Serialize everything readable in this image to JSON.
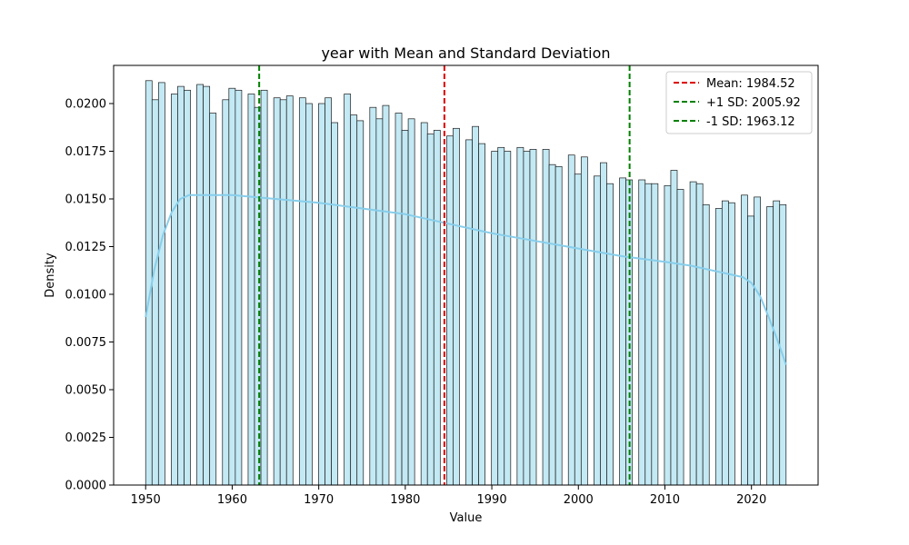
{
  "chart_data": {
    "type": "histogram",
    "title": "year with Mean and Standard Deviation",
    "xlabel": "Value",
    "ylabel": "Density",
    "xlim": [
      1946.3,
      2027.7
    ],
    "ylim": [
      0,
      0.022
    ],
    "x_ticks": [
      1950,
      1960,
      1970,
      1980,
      1990,
      2000,
      2010,
      2020
    ],
    "x_tick_labels": [
      "1950",
      "1960",
      "1970",
      "1980",
      "1990",
      "2000",
      "2010",
      "2020"
    ],
    "y_ticks": [
      0,
      0.0025,
      0.005,
      0.0075,
      0.01,
      0.0125,
      0.015,
      0.0175,
      0.02
    ],
    "y_tick_labels": [
      "0.0000",
      "0.0025",
      "0.0050",
      "0.0075",
      "0.0100",
      "0.0125",
      "0.0150",
      "0.0175",
      "0.0200"
    ],
    "bars": {
      "series_name": "",
      "bin_width": 0.74,
      "bin_starts": [
        1950.0,
        1950.74,
        1951.48,
        1952.22,
        1952.96,
        1953.7,
        1954.44,
        1955.18,
        1955.92,
        1956.66,
        1957.4,
        1958.14,
        1958.88,
        1959.62,
        1960.36,
        1961.1,
        1961.84,
        1962.58,
        1963.32,
        1964.06,
        1964.8,
        1965.54,
        1966.28,
        1967.02,
        1967.76,
        1968.5,
        1969.24,
        1969.98,
        1970.72,
        1971.46,
        1972.2,
        1972.94,
        1973.68,
        1974.42,
        1975.16,
        1975.9,
        1976.64,
        1977.38,
        1978.12,
        1978.86,
        1979.6,
        1980.34,
        1981.08,
        1981.82,
        1982.56,
        1983.3,
        1984.04,
        1984.78,
        1985.52,
        1986.26,
        1987.0,
        1987.74,
        1988.48,
        1989.22,
        1989.96,
        1990.7,
        1991.44,
        1992.18,
        1992.92,
        1993.66,
        1994.4,
        1995.14,
        1995.88,
        1996.62,
        1997.36,
        1998.1,
        1998.84,
        1999.58,
        2000.32,
        2001.06,
        2001.8,
        2002.54,
        2003.28,
        2004.02,
        2004.76,
        2005.5,
        2006.24,
        2006.98,
        2007.72,
        2008.46,
        2009.2,
        2009.94,
        2010.68,
        2011.42,
        2012.16,
        2012.9,
        2013.64,
        2014.38,
        2015.12,
        2015.86,
        2016.6,
        2017.34,
        2018.08,
        2018.82,
        2019.56,
        2020.3,
        2021.04,
        2021.78,
        2022.52,
        2023.26
      ],
      "values": [
        0.0212,
        0.0202,
        0.0211,
        0.0,
        0.0205,
        0.0209,
        0.0207,
        0.0,
        0.021,
        0.0209,
        0.0195,
        0.0,
        0.0202,
        0.0208,
        0.0207,
        0.0,
        0.0205,
        0.0198,
        0.0207,
        0.0,
        0.0203,
        0.0202,
        0.0204,
        0.0,
        0.0203,
        0.02,
        0.0,
        0.02,
        0.0203,
        0.019,
        0.0,
        0.0205,
        0.0194,
        0.0191,
        0.0,
        0.0198,
        0.0192,
        0.0199,
        0.0,
        0.0195,
        0.0186,
        0.0192,
        0.0,
        0.019,
        0.0184,
        0.0186,
        0.0,
        0.0183,
        0.0187,
        0.0,
        0.0181,
        0.0188,
        0.0179,
        0.0,
        0.0175,
        0.0177,
        0.0175,
        0.0,
        0.0177,
        0.0175,
        0.0176,
        0.0,
        0.0176,
        0.0168,
        0.0167,
        0.0,
        0.0173,
        0.0163,
        0.0172,
        0.0,
        0.0162,
        0.0169,
        0.0158,
        0.0,
        0.0161,
        0.016,
        0.0,
        0.016,
        0.0158,
        0.0158,
        0.0,
        0.0157,
        0.0165,
        0.0155,
        0.0,
        0.0159,
        0.0158,
        0.0147,
        0.0,
        0.0145,
        0.0149,
        0.0148,
        0.0,
        0.0152,
        0.0141,
        0.0151,
        0.0,
        0.0146,
        0.0149,
        0.0147
      ]
    },
    "kde": {
      "x": [
        1950,
        1951,
        1952,
        1953,
        1954,
        1955,
        1956,
        1958,
        1960,
        1965,
        1970,
        1975,
        1980,
        1985,
        1990,
        1995,
        2000,
        2005,
        2010,
        2013,
        2016,
        2018,
        2019,
        2020,
        2021,
        2022,
        2023,
        2024
      ],
      "y": [
        0.0088,
        0.0113,
        0.0131,
        0.0143,
        0.015,
        0.0152,
        0.0152,
        0.0152,
        0.0152,
        0.015,
        0.0148,
        0.0145,
        0.0142,
        0.0137,
        0.0132,
        0.0128,
        0.0124,
        0.012,
        0.0117,
        0.0115,
        0.0112,
        0.011,
        0.0109,
        0.0106,
        0.0099,
        0.0088,
        0.0076,
        0.0063
      ]
    },
    "vlines": [
      {
        "label": "Mean: 1984.52",
        "x": 1984.52,
        "color": "#dd0000"
      },
      {
        "label": "+1 SD: 2005.92",
        "x": 2005.92,
        "color": "#008000"
      },
      {
        "label": "-1 SD: 1963.12",
        "x": 1963.12,
        "color": "#008000"
      }
    ],
    "legend_placement": "top-right",
    "colors": {
      "bar_fill": "#c3e9f4",
      "bar_edge": "#1a1a1a",
      "kde": "#87ceeb"
    }
  }
}
